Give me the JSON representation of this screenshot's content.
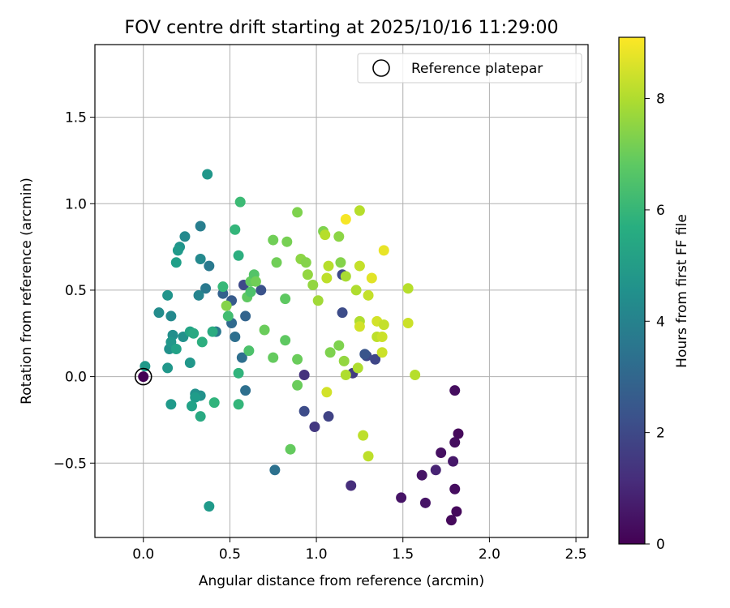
{
  "chart_data": {
    "type": "scatter",
    "title": "FOV centre drift starting at 2025/10/16 11:29:00",
    "xlabel": "Angular distance from reference (arcmin)",
    "ylabel": "Rotation from reference (arcmin)",
    "xlim": [
      -0.28,
      2.57
    ],
    "ylim": [
      -0.93,
      1.92
    ],
    "xticks": [
      0.0,
      0.5,
      1.0,
      1.5,
      2.0,
      2.5
    ],
    "xtick_labels": [
      "0.0",
      "0.5",
      "1.0",
      "1.5",
      "2.0",
      "2.5"
    ],
    "yticks": [
      -0.5,
      0.0,
      0.5,
      1.0,
      1.5
    ],
    "ytick_labels": [
      "−0.5",
      "0.0",
      "0.5",
      "1.0",
      "1.5"
    ],
    "grid": true,
    "legend": {
      "position": "top-right",
      "entries": [
        "Reference platepar"
      ]
    },
    "reference_point": {
      "x": 0.0,
      "y": 0.0
    },
    "colorbar": {
      "label": "Hours from first FF file",
      "range": [
        0,
        9.1
      ],
      "ticks": [
        0,
        2,
        4,
        6,
        8
      ],
      "tick_labels": [
        "0",
        "2",
        "4",
        "6",
        "8"
      ],
      "colormap": "viridis"
    },
    "points": [
      {
        "x": 1.8,
        "y": -0.08,
        "c": 0.3
      },
      {
        "x": 1.82,
        "y": -0.33,
        "c": 0.2
      },
      {
        "x": 1.8,
        "y": -0.38,
        "c": 0.3
      },
      {
        "x": 1.72,
        "y": -0.44,
        "c": 0.4
      },
      {
        "x": 1.79,
        "y": -0.49,
        "c": 0.6
      },
      {
        "x": 1.69,
        "y": -0.54,
        "c": 0.9
      },
      {
        "x": 1.61,
        "y": -0.57,
        "c": 0.5
      },
      {
        "x": 1.8,
        "y": -0.65,
        "c": 0.3
      },
      {
        "x": 1.49,
        "y": -0.7,
        "c": 0.5
      },
      {
        "x": 1.63,
        "y": -0.73,
        "c": 0.5
      },
      {
        "x": 1.81,
        "y": -0.78,
        "c": 0.2
      },
      {
        "x": 1.78,
        "y": -0.83,
        "c": 0.2
      },
      {
        "x": 1.2,
        "y": -0.63,
        "c": 1.2
      },
      {
        "x": 0.99,
        "y": -0.29,
        "c": 1.5
      },
      {
        "x": 1.07,
        "y": -0.23,
        "c": 1.8
      },
      {
        "x": 0.93,
        "y": -0.2,
        "c": 2.1
      },
      {
        "x": 0.93,
        "y": 0.01,
        "c": 1.3
      },
      {
        "x": 1.21,
        "y": 0.02,
        "c": 1.6
      },
      {
        "x": 1.34,
        "y": 0.1,
        "c": 1.9
      },
      {
        "x": 1.29,
        "y": 0.12,
        "c": 2.0
      },
      {
        "x": 1.28,
        "y": 0.13,
        "c": 2.4
      },
      {
        "x": 1.15,
        "y": 0.37,
        "c": 2.1
      },
      {
        "x": 1.15,
        "y": 0.59,
        "c": 2.0
      },
      {
        "x": 0.58,
        "y": 0.53,
        "c": 2.0
      },
      {
        "x": 0.68,
        "y": 0.5,
        "c": 2.3
      },
      {
        "x": 0.51,
        "y": 0.44,
        "c": 2.6
      },
      {
        "x": 0.46,
        "y": 0.48,
        "c": 2.8
      },
      {
        "x": 0.59,
        "y": 0.35,
        "c": 2.9
      },
      {
        "x": 0.51,
        "y": 0.31,
        "c": 3.1
      },
      {
        "x": 0.53,
        "y": 0.23,
        "c": 3.3
      },
      {
        "x": 0.42,
        "y": 0.26,
        "c": 3.6
      },
      {
        "x": 0.57,
        "y": 0.11,
        "c": 3.3
      },
      {
        "x": 0.59,
        "y": -0.08,
        "c": 3.3
      },
      {
        "x": 0.76,
        "y": -0.54,
        "c": 3.4
      },
      {
        "x": 0.38,
        "y": 0.64,
        "c": 3.7
      },
      {
        "x": 0.36,
        "y": 0.51,
        "c": 3.7
      },
      {
        "x": 0.32,
        "y": 0.47,
        "c": 4.1
      },
      {
        "x": 0.33,
        "y": 0.87,
        "c": 3.9
      },
      {
        "x": 0.33,
        "y": 0.68,
        "c": 4.3
      },
      {
        "x": 0.24,
        "y": 0.81,
        "c": 4.3
      },
      {
        "x": 0.21,
        "y": 0.75,
        "c": 4.7
      },
      {
        "x": 0.2,
        "y": 0.73,
        "c": 4.9
      },
      {
        "x": 0.19,
        "y": 0.66,
        "c": 5.1
      },
      {
        "x": 0.14,
        "y": 0.47,
        "c": 4.7
      },
      {
        "x": 0.09,
        "y": 0.37,
        "c": 4.4
      },
      {
        "x": 0.16,
        "y": 0.35,
        "c": 4.3
      },
      {
        "x": 0.17,
        "y": 0.24,
        "c": 4.5
      },
      {
        "x": 0.23,
        "y": 0.23,
        "c": 4.6
      },
      {
        "x": 0.15,
        "y": 0.16,
        "c": 4.6
      },
      {
        "x": 0.16,
        "y": 0.2,
        "c": 4.8
      },
      {
        "x": 0.19,
        "y": 0.16,
        "c": 5.2
      },
      {
        "x": 0.14,
        "y": 0.05,
        "c": 4.8
      },
      {
        "x": 0.27,
        "y": 0.08,
        "c": 4.8
      },
      {
        "x": 0.01,
        "y": 0.06,
        "c": 4.9
      },
      {
        "x": 0.16,
        "y": -0.16,
        "c": 4.9
      },
      {
        "x": 0.3,
        "y": -0.1,
        "c": 4.6
      },
      {
        "x": 0.33,
        "y": -0.11,
        "c": 4.6
      },
      {
        "x": 0.3,
        "y": -0.12,
        "c": 5.0
      },
      {
        "x": 0.28,
        "y": -0.17,
        "c": 5.2
      },
      {
        "x": 0.33,
        "y": -0.23,
        "c": 5.5
      },
      {
        "x": 0.38,
        "y": -0.75,
        "c": 4.9
      },
      {
        "x": 0.37,
        "y": 1.17,
        "c": 4.8
      },
      {
        "x": 0.27,
        "y": 0.26,
        "c": 5.3
      },
      {
        "x": 0.29,
        "y": 0.25,
        "c": 5.5
      },
      {
        "x": 0.34,
        "y": 0.2,
        "c": 5.7
      },
      {
        "x": 0.4,
        "y": 0.26,
        "c": 5.6
      },
      {
        "x": 0.41,
        "y": -0.15,
        "c": 5.9
      },
      {
        "x": 0.55,
        "y": -0.16,
        "c": 6.0
      },
      {
        "x": 0.55,
        "y": 0.02,
        "c": 5.9
      },
      {
        "x": 0.55,
        "y": 0.7,
        "c": 5.7
      },
      {
        "x": 0.53,
        "y": 0.85,
        "c": 6.0
      },
      {
        "x": 0.56,
        "y": 1.01,
        "c": 6.2
      },
      {
        "x": 0.46,
        "y": 0.52,
        "c": 6.1
      },
      {
        "x": 0.49,
        "y": 0.35,
        "c": 6.3
      },
      {
        "x": 0.48,
        "y": 0.41,
        "c": 7.4
      },
      {
        "x": 0.61,
        "y": 0.15,
        "c": 6.5
      },
      {
        "x": 0.6,
        "y": 0.46,
        "c": 6.8
      },
      {
        "x": 0.62,
        "y": 0.49,
        "c": 6.5
      },
      {
        "x": 0.62,
        "y": 0.55,
        "c": 6.9
      },
      {
        "x": 0.64,
        "y": 0.59,
        "c": 6.6
      },
      {
        "x": 0.65,
        "y": 0.55,
        "c": 7.1
      },
      {
        "x": 0.7,
        "y": 0.27,
        "c": 7.0
      },
      {
        "x": 0.75,
        "y": 0.11,
        "c": 6.9
      },
      {
        "x": 0.82,
        "y": 0.21,
        "c": 6.8
      },
      {
        "x": 0.82,
        "y": 0.45,
        "c": 6.8
      },
      {
        "x": 0.77,
        "y": 0.66,
        "c": 7.1
      },
      {
        "x": 0.75,
        "y": 0.79,
        "c": 7.1
      },
      {
        "x": 0.83,
        "y": 0.78,
        "c": 7.2
      },
      {
        "x": 0.89,
        "y": 0.95,
        "c": 7.3
      },
      {
        "x": 0.89,
        "y": 0.1,
        "c": 7.0
      },
      {
        "x": 0.89,
        "y": -0.05,
        "c": 7.0
      },
      {
        "x": 0.85,
        "y": -0.42,
        "c": 6.9
      },
      {
        "x": 0.91,
        "y": 0.68,
        "c": 7.5
      },
      {
        "x": 0.94,
        "y": 0.66,
        "c": 7.4
      },
      {
        "x": 0.95,
        "y": 0.59,
        "c": 7.6
      },
      {
        "x": 0.98,
        "y": 0.53,
        "c": 7.6
      },
      {
        "x": 1.01,
        "y": 0.44,
        "c": 7.8
      },
      {
        "x": 1.04,
        "y": 0.84,
        "c": 7.3
      },
      {
        "x": 1.05,
        "y": 0.82,
        "c": 8.1
      },
      {
        "x": 1.06,
        "y": 0.57,
        "c": 8.2
      },
      {
        "x": 1.07,
        "y": 0.64,
        "c": 8.1
      },
      {
        "x": 1.06,
        "y": -0.09,
        "c": 8.5
      },
      {
        "x": 1.08,
        "y": 0.14,
        "c": 7.3
      },
      {
        "x": 1.13,
        "y": 0.18,
        "c": 7.3
      },
      {
        "x": 1.13,
        "y": 0.81,
        "c": 7.5
      },
      {
        "x": 1.14,
        "y": 0.66,
        "c": 7.4
      },
      {
        "x": 1.16,
        "y": 0.09,
        "c": 7.6
      },
      {
        "x": 1.17,
        "y": 0.58,
        "c": 7.9
      },
      {
        "x": 1.17,
        "y": 0.01,
        "c": 8.0
      },
      {
        "x": 1.17,
        "y": 0.91,
        "c": 9.0
      },
      {
        "x": 1.23,
        "y": 0.5,
        "c": 8.0
      },
      {
        "x": 1.24,
        "y": 0.05,
        "c": 8.0
      },
      {
        "x": 1.25,
        "y": 0.96,
        "c": 8.1
      },
      {
        "x": 1.25,
        "y": 0.64,
        "c": 8.3
      },
      {
        "x": 1.25,
        "y": 0.32,
        "c": 8.0
      },
      {
        "x": 1.25,
        "y": 0.29,
        "c": 8.5
      },
      {
        "x": 1.27,
        "y": -0.34,
        "c": 8.2
      },
      {
        "x": 1.3,
        "y": 0.47,
        "c": 8.3
      },
      {
        "x": 1.3,
        "y": -0.46,
        "c": 8.2
      },
      {
        "x": 1.32,
        "y": 0.57,
        "c": 8.7
      },
      {
        "x": 1.35,
        "y": 0.32,
        "c": 8.5
      },
      {
        "x": 1.35,
        "y": 0.23,
        "c": 8.2
      },
      {
        "x": 1.38,
        "y": 0.23,
        "c": 8.4
      },
      {
        "x": 1.38,
        "y": 0.14,
        "c": 8.4
      },
      {
        "x": 1.39,
        "y": 0.3,
        "c": 8.3
      },
      {
        "x": 1.39,
        "y": 0.73,
        "c": 8.8
      },
      {
        "x": 1.53,
        "y": 0.51,
        "c": 8.1
      },
      {
        "x": 1.53,
        "y": 0.31,
        "c": 8.4
      },
      {
        "x": 1.57,
        "y": 0.01,
        "c": 8.1
      },
      {
        "x": 0.0,
        "y": 0.0,
        "c": 0.0
      }
    ]
  }
}
